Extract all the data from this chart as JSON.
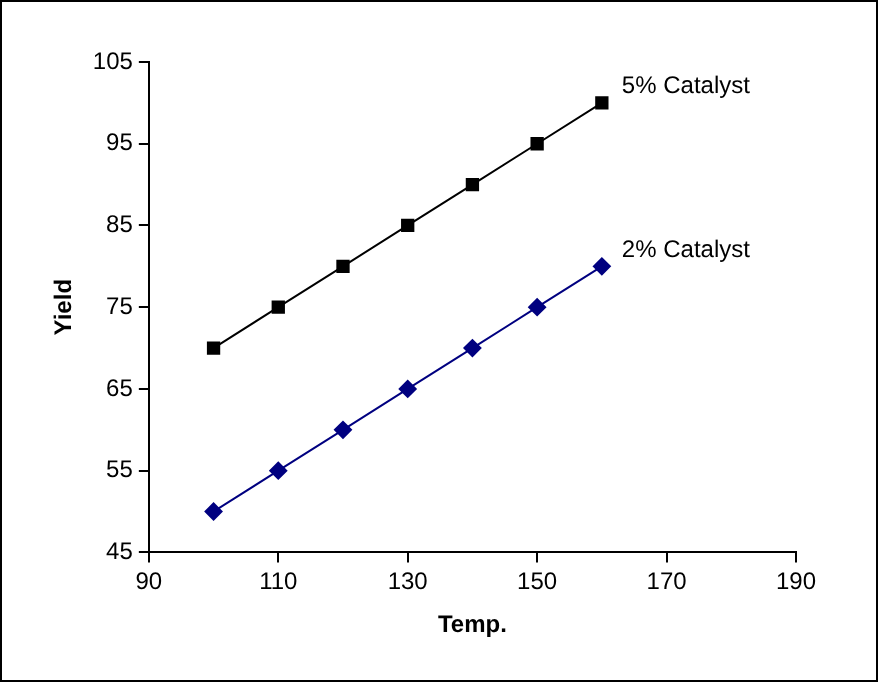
{
  "chart_data": {
    "type": "line",
    "xlabel": "Temp.",
    "ylabel": "Yield",
    "x": [
      100,
      110,
      120,
      130,
      140,
      150,
      160
    ],
    "series": [
      {
        "name": "5% Catalyst",
        "color": "#000000",
        "marker": "square",
        "values": [
          70,
          75,
          80,
          85,
          90,
          95,
          100
        ]
      },
      {
        "name": "2% Catalyst",
        "color": "#000080",
        "marker": "diamond",
        "values": [
          50,
          55,
          60,
          65,
          70,
          75,
          80
        ]
      }
    ],
    "xlim": [
      90,
      190
    ],
    "xticks": [
      90,
      110,
      130,
      150,
      170,
      190
    ],
    "ylim": [
      45,
      105
    ],
    "yticks": [
      45,
      55,
      65,
      75,
      85,
      95,
      105
    ],
    "grid": false,
    "legend": false,
    "line_style": "solid"
  }
}
